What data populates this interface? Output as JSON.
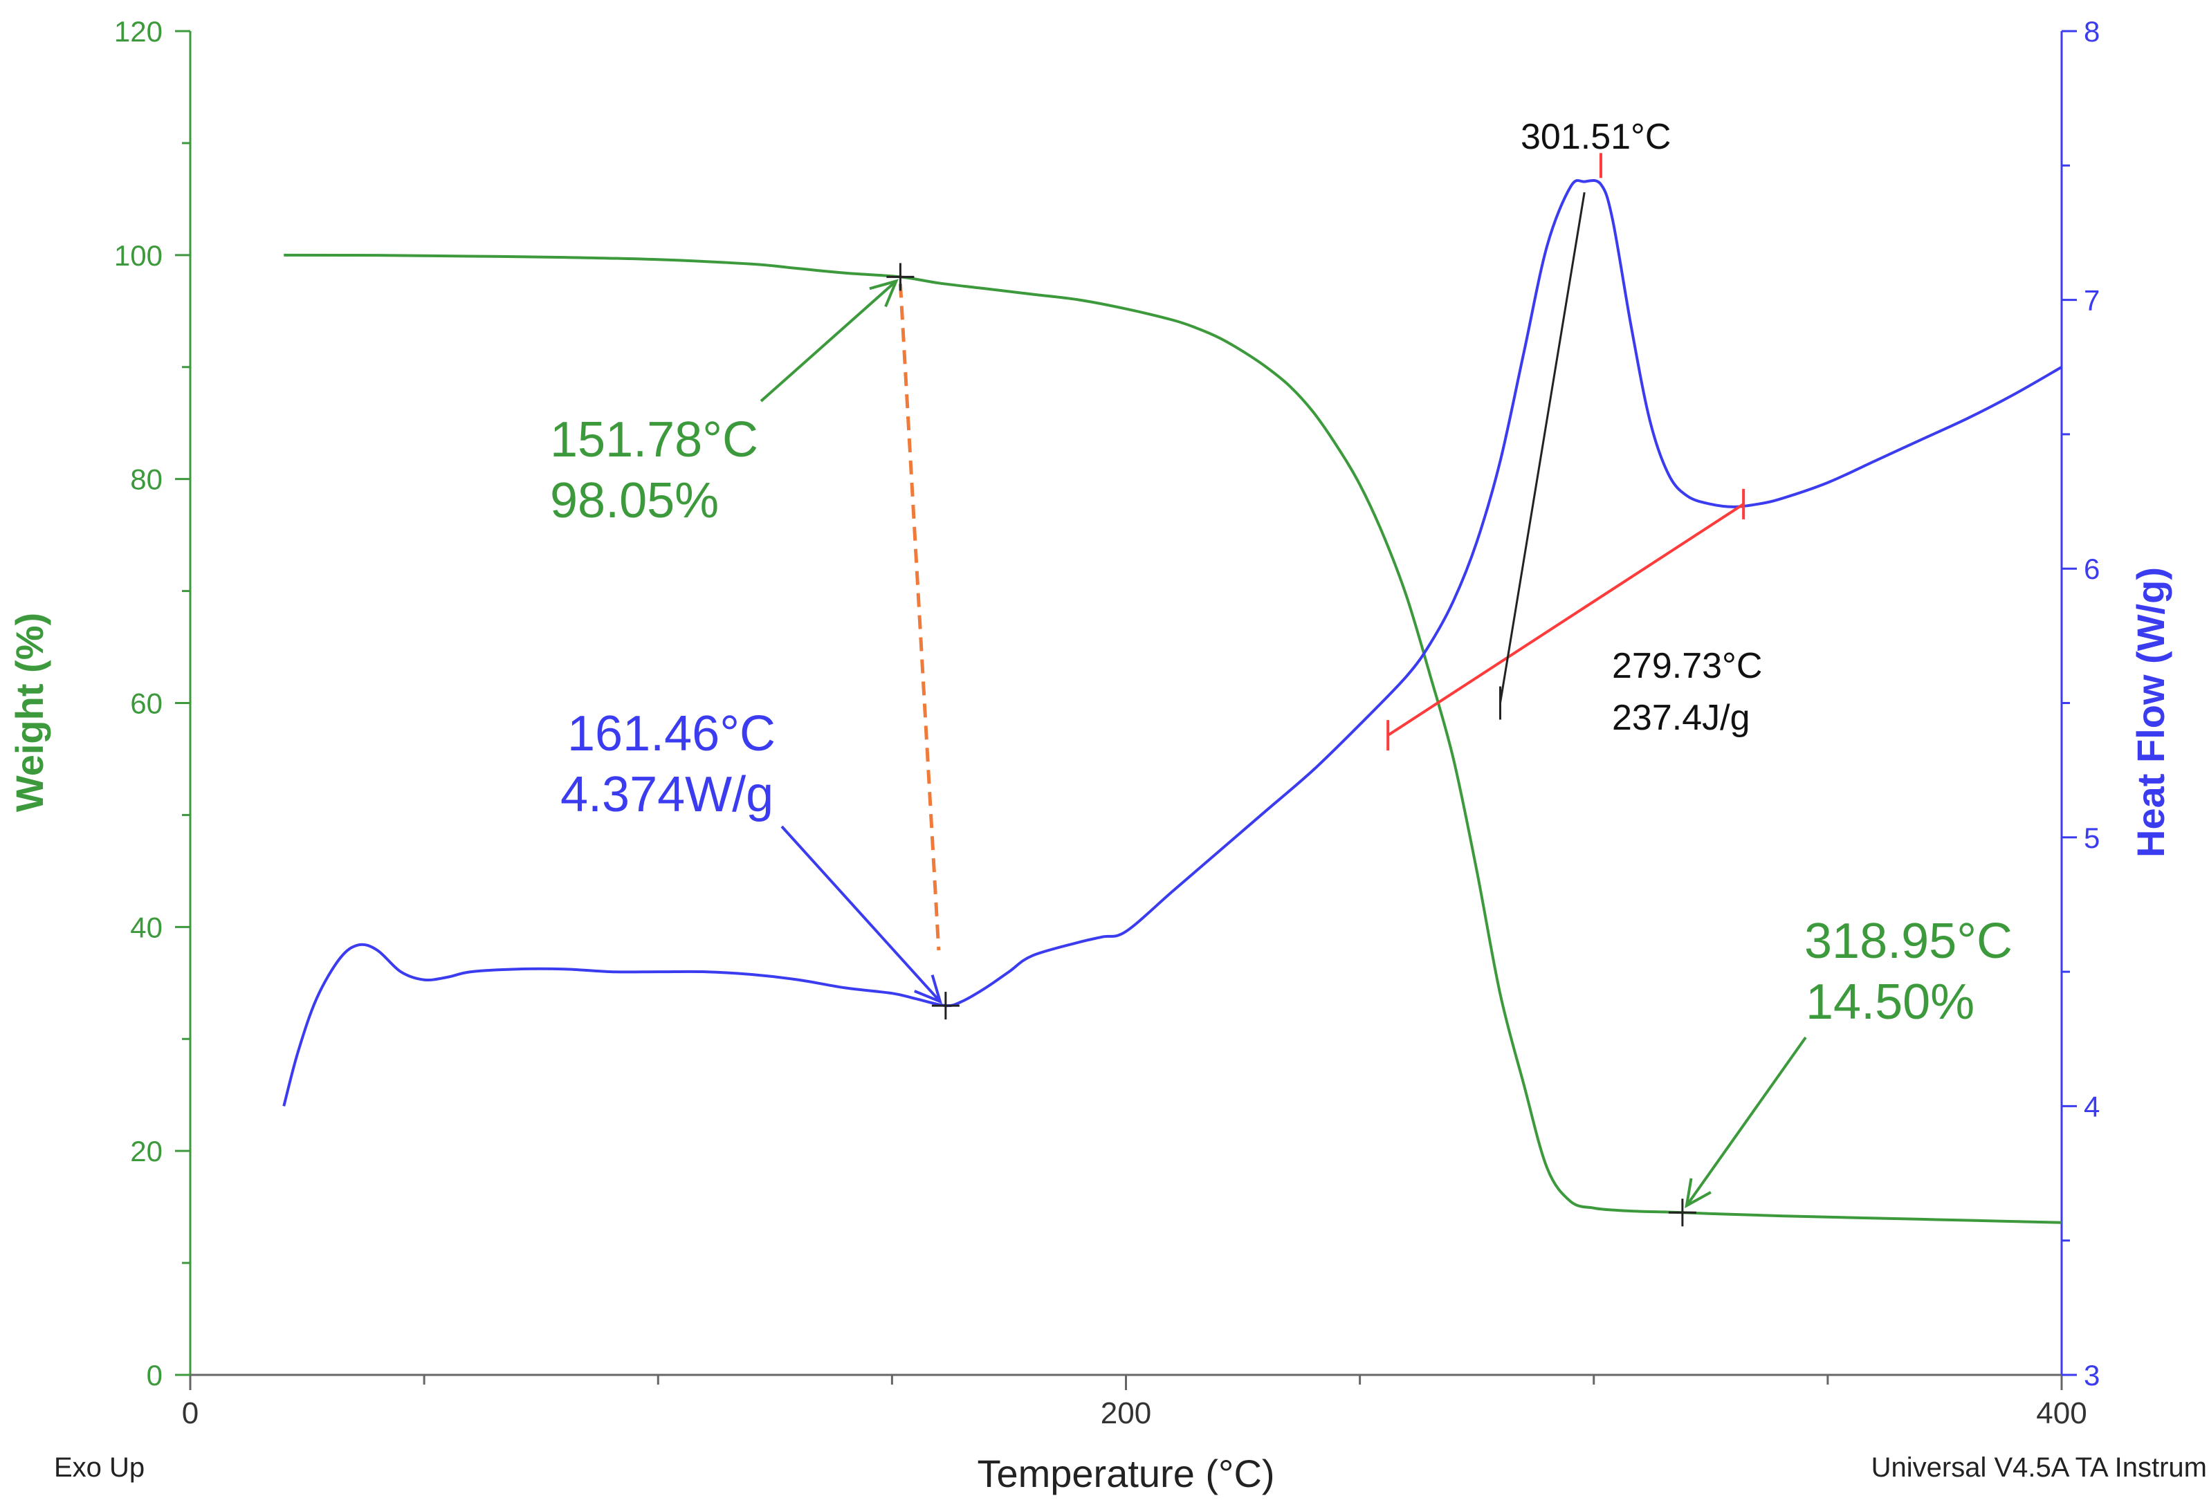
{
  "chart_data": {
    "type": "line",
    "xlabel": "Temperature (°C)",
    "ylabel_left": "Weight (%)",
    "ylabel_right": "Heat Flow (W/g)",
    "xlim": [
      0,
      400
    ],
    "ylim_left": [
      0,
      120
    ],
    "ylim_right": [
      3,
      8
    ],
    "x_ticks": [
      "0",
      "200",
      "400"
    ],
    "y_left_ticks": [
      "0",
      "20",
      "40",
      "60",
      "80",
      "100",
      "120"
    ],
    "y_right_ticks": [
      "3",
      "4",
      "5",
      "6",
      "7",
      "8"
    ],
    "footer_left": "Exo Up",
    "footer_right": "Universal V4.5A TA Instrum",
    "grid": false,
    "colors": {
      "weight": "#3c9a3c",
      "heat_flow": "#3b3bf0",
      "baseline": "#ff3b3b",
      "dashed_link": "#f07a3a",
      "tangent": "#222222",
      "axis_left": "#3c9a3c",
      "axis_right": "#3b3bf0",
      "axis_bottom": "#666666"
    },
    "series": [
      {
        "key": "weight",
        "axis": "left",
        "x": [
          20,
          40,
          60,
          80,
          100,
          120,
          130,
          140,
          151.78,
          160,
          170,
          180,
          190,
          200,
          210,
          215,
          220,
          225,
          230,
          235,
          240,
          245,
          250,
          255,
          260,
          265,
          270,
          275,
          280,
          285,
          290,
          295,
          300,
          305,
          310,
          315,
          318.95,
          325,
          340,
          360,
          380,
          400
        ],
        "y": [
          100,
          99.98,
          99.9,
          99.8,
          99.6,
          99.2,
          98.8,
          98.4,
          98.05,
          97.5,
          97,
          96.5,
          96.0,
          95.2,
          94.2,
          93.5,
          92.6,
          91.4,
          90.0,
          88.3,
          86.0,
          83.0,
          79.5,
          75.0,
          69.5,
          62.5,
          55.0,
          45.0,
          34.0,
          26.0,
          18.5,
          15.5,
          14.9,
          14.7,
          14.6,
          14.55,
          14.5,
          14.4,
          14.2,
          14.0,
          13.8,
          13.6
        ]
      },
      {
        "key": "heat_flow",
        "axis": "right",
        "x": [
          20,
          23,
          27,
          32,
          36,
          40,
          45,
          50,
          55,
          60,
          70,
          80,
          90,
          100,
          110,
          120,
          130,
          140,
          150,
          155,
          161.46,
          165,
          170,
          175,
          180,
          190,
          195,
          200,
          210,
          220,
          230,
          240,
          250,
          260,
          265,
          270,
          275,
          280,
          285,
          290,
          295,
          298,
          301.51,
          304,
          308,
          312,
          316,
          320,
          325,
          330,
          335,
          340,
          350,
          360,
          370,
          380,
          390,
          400
        ],
        "y": [
          4.0,
          4.2,
          4.4,
          4.55,
          4.6,
          4.58,
          4.5,
          4.47,
          4.48,
          4.5,
          4.51,
          4.51,
          4.5,
          4.5,
          4.5,
          4.49,
          4.47,
          4.44,
          4.42,
          4.4,
          4.374,
          4.39,
          4.44,
          4.5,
          4.56,
          4.61,
          4.63,
          4.65,
          4.8,
          4.95,
          5.1,
          5.25,
          5.42,
          5.6,
          5.72,
          5.88,
          6.1,
          6.4,
          6.8,
          7.2,
          7.42,
          7.44,
          7.43,
          7.3,
          6.9,
          6.55,
          6.35,
          6.27,
          6.24,
          6.23,
          6.24,
          6.26,
          6.32,
          6.4,
          6.48,
          6.56,
          6.65,
          6.75
        ]
      }
    ],
    "annotations": {
      "weight_onset": {
        "x": 151.78,
        "y": 98.05,
        "line1": "151.78°C",
        "line2": "98.05%"
      },
      "heat_min": {
        "x": 161.46,
        "y": 4.374,
        "line1": "161.46°C",
        "line2": "4.374W/g"
      },
      "peak": {
        "x": 301.51,
        "y": 7.5,
        "label": "301.51°C"
      },
      "onset_enthalpy": {
        "x": 279.73,
        "line1": "279.73°C",
        "line2": "237.4J/g"
      },
      "residue": {
        "x": 318.95,
        "y": 14.5,
        "line1": "318.95°C",
        "line2": "14.50%"
      },
      "baseline": {
        "x1": 256,
        "y1": 5.38,
        "x2": 332,
        "y2": 6.24
      },
      "tangent": {
        "x1": 280,
        "y1": 5.5,
        "x2": 298,
        "y2": 7.4
      }
    }
  }
}
